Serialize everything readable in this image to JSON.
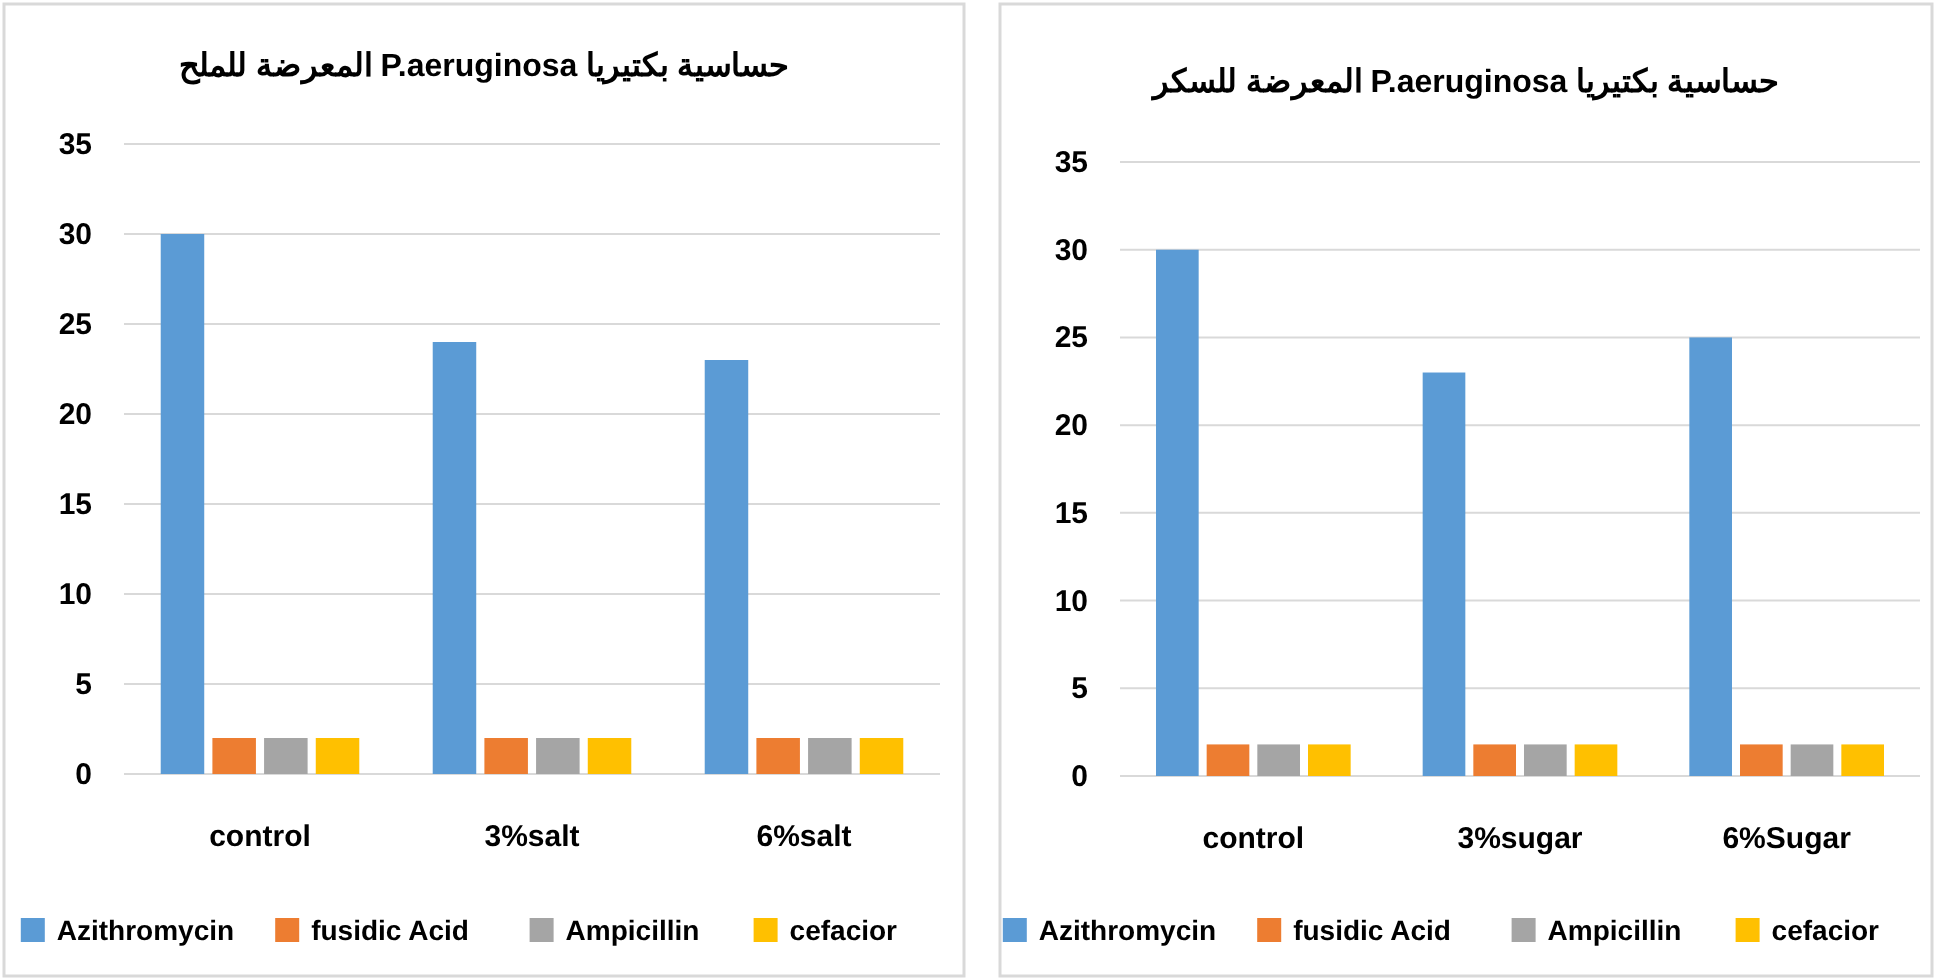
{
  "chart_data": [
    {
      "type": "bar",
      "title": "حساسية بكتيريا P.aeruginosa المعرضة للملح",
      "categories": [
        "control",
        "3%salt",
        "6%salt"
      ],
      "series": [
        {
          "name": "Azithromycin",
          "color": "#5b9bd5",
          "values": [
            30,
            24,
            23
          ]
        },
        {
          "name": "fusidic Acid",
          "color": "#ed7d31",
          "values": [
            2,
            2,
            2
          ]
        },
        {
          "name": "Ampicillin",
          "color": "#a5a5a5",
          "values": [
            2,
            2,
            2
          ]
        },
        {
          "name": "cefacior",
          "color": "#ffc000",
          "values": [
            2,
            2,
            2
          ]
        }
      ],
      "ylim": [
        0,
        35
      ],
      "yticks": [
        0,
        5,
        10,
        15,
        20,
        25,
        30,
        35
      ],
      "grid": "y",
      "legend": "bottom"
    },
    {
      "type": "bar",
      "title": "حساسية بكتيريا P.aeruginosa المعرضة للسكر",
      "categories": [
        "control",
        "3%sugar",
        "6%Sugar"
      ],
      "series": [
        {
          "name": "Azithromycin",
          "color": "#5b9bd5",
          "values": [
            30,
            23,
            25
          ]
        },
        {
          "name": "fusidic Acid",
          "color": "#ed7d31",
          "values": [
            1.8,
            1.8,
            1.8
          ]
        },
        {
          "name": "Ampicillin",
          "color": "#a5a5a5",
          "values": [
            1.8,
            1.8,
            1.8
          ]
        },
        {
          "name": "cefacior",
          "color": "#ffc000",
          "values": [
            1.8,
            1.8,
            1.8
          ]
        }
      ],
      "ylim": [
        0,
        35
      ],
      "yticks": [
        0,
        5,
        10,
        15,
        20,
        25,
        30,
        35
      ],
      "grid": "y",
      "legend": "bottom"
    }
  ]
}
